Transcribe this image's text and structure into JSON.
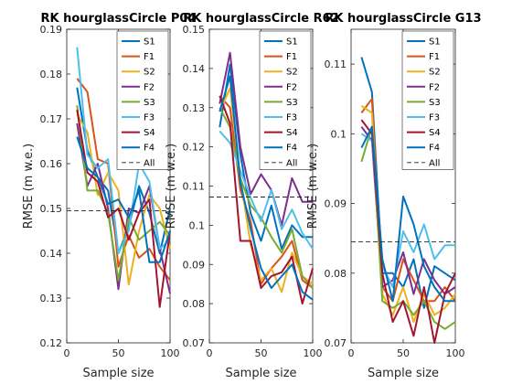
{
  "chart_data": [
    {
      "type": "line",
      "title": "RK hourglassCircle P04",
      "xlabel": "Sample size",
      "ylabel": "RMSE (m w.e.)",
      "xlim": [
        0,
        100
      ],
      "ylim": [
        0.12,
        0.19
      ],
      "xticks": [
        0,
        50,
        100
      ],
      "yticks": [
        "0.12",
        "0.13",
        "0.14",
        "0.15",
        "0.16",
        "0.17",
        "0.18",
        "0.19"
      ],
      "legend_loc": "top-right",
      "x": [
        10,
        20,
        30,
        40,
        50,
        60,
        70,
        80,
        90,
        100
      ],
      "all_value": 0.1495,
      "series": [
        {
          "name": "S1",
          "color": "#0072BD",
          "values": [
            0.177,
            0.163,
            0.157,
            0.154,
            0.14,
            0.146,
            0.155,
            0.149,
            0.14,
            0.15
          ]
        },
        {
          "name": "F1",
          "color": "#D95319",
          "values": [
            0.179,
            0.176,
            0.161,
            0.16,
            0.137,
            0.144,
            0.139,
            0.141,
            0.137,
            0.134
          ]
        },
        {
          "name": "S2",
          "color": "#EDB120",
          "values": [
            0.171,
            0.167,
            0.153,
            0.158,
            0.154,
            0.133,
            0.145,
            0.153,
            0.15,
            0.141
          ]
        },
        {
          "name": "F2",
          "color": "#7E2F8E",
          "values": [
            0.169,
            0.155,
            0.16,
            0.15,
            0.132,
            0.15,
            0.149,
            0.155,
            0.141,
            0.131
          ]
        },
        {
          "name": "S3",
          "color": "#77AC30",
          "values": [
            0.173,
            0.154,
            0.154,
            0.149,
            0.134,
            0.148,
            0.143,
            0.145,
            0.147,
            0.144
          ]
        },
        {
          "name": "F3",
          "color": "#4DBEEE",
          "values": [
            0.186,
            0.162,
            0.159,
            0.161,
            0.14,
            0.145,
            0.16,
            0.156,
            0.141,
            0.143
          ]
        },
        {
          "name": "S4",
          "color": "#A2142F",
          "values": [
            0.172,
            0.158,
            0.156,
            0.148,
            0.15,
            0.143,
            0.149,
            0.152,
            0.128,
            0.145
          ]
        },
        {
          "name": "F4",
          "color": "#0072BD",
          "values": [
            0.166,
            0.159,
            0.157,
            0.151,
            0.152,
            0.148,
            0.154,
            0.138,
            0.138,
            0.145
          ]
        }
      ]
    },
    {
      "type": "line",
      "title": "RK hourglassCircle R62",
      "xlabel": "Sample size",
      "ylabel": "RMSE (m w.e.)",
      "xlim": [
        0,
        100
      ],
      "ylim": [
        0.07,
        0.15
      ],
      "xticks": [
        0,
        50,
        100
      ],
      "yticks": [
        "0.07",
        "0.08",
        "0.09",
        "0.1",
        "0.11",
        "0.12",
        "0.13",
        "0.14",
        "0.15"
      ],
      "legend_loc": "top-right",
      "x": [
        10,
        20,
        30,
        40,
        50,
        60,
        70,
        80,
        90,
        100
      ],
      "all_value": 0.1072,
      "series": [
        {
          "name": "S1",
          "color": "#0072BD",
          "values": [
            0.125,
            0.141,
            0.118,
            0.103,
            0.096,
            0.105,
            0.094,
            0.1,
            0.097,
            0.097
          ]
        },
        {
          "name": "F1",
          "color": "#D95319",
          "values": [
            0.133,
            0.13,
            0.109,
            0.101,
            0.085,
            0.089,
            0.092,
            0.096,
            0.086,
            0.084
          ]
        },
        {
          "name": "S2",
          "color": "#EDB120",
          "values": [
            0.129,
            0.135,
            0.112,
            0.095,
            0.086,
            0.089,
            0.083,
            0.093,
            0.087,
            0.085
          ]
        },
        {
          "name": "F2",
          "color": "#7E2F8E",
          "values": [
            0.131,
            0.144,
            0.12,
            0.108,
            0.113,
            0.109,
            0.1,
            0.112,
            0.106,
            0.106
          ]
        },
        {
          "name": "S3",
          "color": "#77AC30",
          "values": [
            0.13,
            0.125,
            0.112,
            0.105,
            0.102,
            0.097,
            0.093,
            0.099,
            0.087,
            0.084
          ]
        },
        {
          "name": "F3",
          "color": "#4DBEEE",
          "values": [
            0.124,
            0.121,
            0.114,
            0.107,
            0.101,
            0.109,
            0.099,
            0.104,
            0.098,
            0.094
          ]
        },
        {
          "name": "S4",
          "color": "#A2142F",
          "values": [
            0.133,
            0.126,
            0.096,
            0.096,
            0.084,
            0.087,
            0.088,
            0.092,
            0.08,
            0.089
          ]
        },
        {
          "name": "F4",
          "color": "#0072BD",
          "values": [
            0.129,
            0.138,
            0.111,
            0.099,
            0.089,
            0.084,
            0.087,
            0.09,
            0.083,
            0.081
          ]
        }
      ]
    },
    {
      "type": "line",
      "title": "RK hourglassCircle G13",
      "xlabel": "Sample size",
      "ylabel": "RMSE (m w.e.)",
      "xlim": [
        0,
        100
      ],
      "ylim": [
        0.07,
        0.115
      ],
      "xticks": [
        0,
        50,
        100
      ],
      "yticks": [
        "0.07",
        "0.08",
        "0.09",
        "0.1",
        "0.11"
      ],
      "legend_loc": "top-right",
      "x": [
        10,
        20,
        30,
        40,
        50,
        60,
        70,
        80,
        90,
        100
      ],
      "all_value": 0.0845,
      "series": [
        {
          "name": "S1",
          "color": "#0072BD",
          "values": [
            0.111,
            0.106,
            0.08,
            0.08,
            0.078,
            0.082,
            0.075,
            0.081,
            0.08,
            0.079
          ]
        },
        {
          "name": "F1",
          "color": "#D95319",
          "values": [
            0.103,
            0.105,
            0.078,
            0.076,
            0.082,
            0.079,
            0.076,
            0.076,
            0.078,
            0.076
          ]
        },
        {
          "name": "S2",
          "color": "#EDB120",
          "values": [
            0.104,
            0.103,
            0.077,
            0.074,
            0.078,
            0.073,
            0.077,
            0.074,
            0.075,
            0.077
          ]
        },
        {
          "name": "F2",
          "color": "#7E2F8E",
          "values": [
            0.101,
            0.099,
            0.078,
            0.079,
            0.083,
            0.077,
            0.082,
            0.079,
            0.077,
            0.078
          ]
        },
        {
          "name": "S3",
          "color": "#77AC30",
          "values": [
            0.096,
            0.101,
            0.076,
            0.075,
            0.076,
            0.074,
            0.076,
            0.073,
            0.072,
            0.073
          ]
        },
        {
          "name": "F3",
          "color": "#4DBEEE",
          "values": [
            0.1,
            0.099,
            0.081,
            0.078,
            0.086,
            0.083,
            0.087,
            0.082,
            0.084,
            0.084
          ]
        },
        {
          "name": "S4",
          "color": "#A2142F",
          "values": [
            0.102,
            0.1,
            0.08,
            0.073,
            0.076,
            0.071,
            0.078,
            0.07,
            0.077,
            0.08
          ]
        },
        {
          "name": "F4",
          "color": "#0072BD",
          "values": [
            0.098,
            0.101,
            0.082,
            0.076,
            0.091,
            0.087,
            0.081,
            0.078,
            0.076,
            0.076
          ]
        }
      ]
    }
  ],
  "legend_all_label": "All"
}
